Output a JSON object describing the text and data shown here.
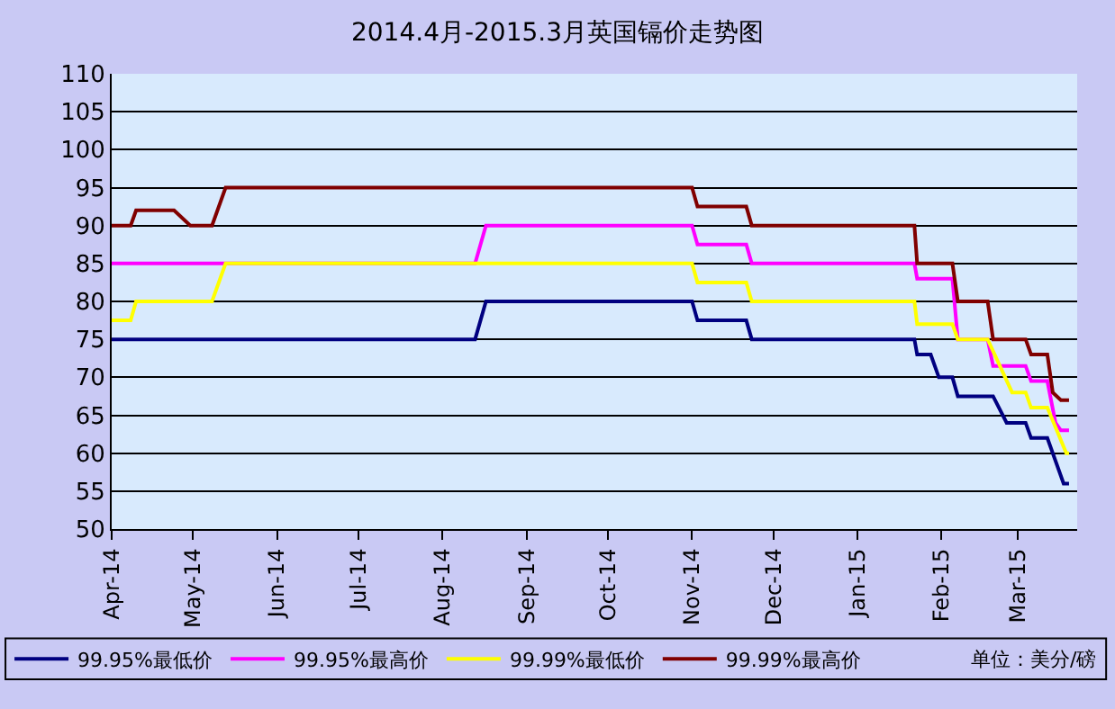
{
  "chart_data": {
    "type": "line",
    "title": "2014.4月-2015.3月英国镉价走势图",
    "xlim": [
      "2014-04-01",
      "2015-03-23"
    ],
    "xticks": [
      {
        "value": "2014-04-01",
        "label": "Apr-14"
      },
      {
        "value": "2014-05-01",
        "label": "May-14"
      },
      {
        "value": "2014-06-01",
        "label": "Jun-14"
      },
      {
        "value": "2014-07-01",
        "label": "Jul-14"
      },
      {
        "value": "2014-08-01",
        "label": "Aug-14"
      },
      {
        "value": "2014-09-01",
        "label": "Sep-14"
      },
      {
        "value": "2014-10-01",
        "label": "Oct-14"
      },
      {
        "value": "2014-11-01",
        "label": "Nov-14"
      },
      {
        "value": "2014-12-01",
        "label": "Dec-14"
      },
      {
        "value": "2015-01-01",
        "label": "Jan-15"
      },
      {
        "value": "2015-02-01",
        "label": "Feb-15"
      },
      {
        "value": "2015-03-01",
        "label": "Mar-15"
      }
    ],
    "ylim": [
      50,
      110
    ],
    "yticks": [
      50,
      55,
      60,
      65,
      70,
      75,
      80,
      85,
      90,
      95,
      100,
      105,
      110
    ],
    "grid": "y",
    "legend": "bottom",
    "marker": "none",
    "line_style": "solid",
    "annotations": [
      "单位：美分/磅"
    ],
    "series": [
      {
        "name": "99.95%最低价",
        "color": "#000080",
        "x": [
          "2014-04-01",
          "2014-08-13",
          "2014-08-17",
          "2014-11-01",
          "2014-11-03",
          "2014-11-21",
          "2014-11-23",
          "2015-01-22",
          "2015-01-23",
          "2015-01-28",
          "2015-01-31",
          "2015-02-05",
          "2015-02-07",
          "2015-02-20",
          "2015-02-25",
          "2015-03-04",
          "2015-03-06",
          "2015-03-12",
          "2015-03-18",
          "2015-03-20"
        ],
        "values": [
          75,
          75,
          80,
          80,
          77.5,
          77.5,
          75,
          75,
          73,
          73,
          70,
          70,
          67.5,
          67.5,
          64,
          64,
          62,
          62,
          56,
          56
        ]
      },
      {
        "name": "99.95%最高价",
        "color": "#ff00ff",
        "x": [
          "2014-04-01",
          "2014-08-13",
          "2014-08-17",
          "2014-11-01",
          "2014-11-03",
          "2014-11-21",
          "2014-11-23",
          "2015-01-22",
          "2015-01-23",
          "2015-02-05",
          "2015-02-07",
          "2015-02-18",
          "2015-02-20",
          "2015-03-04",
          "2015-03-06",
          "2015-03-12",
          "2015-03-15",
          "2015-03-17",
          "2015-03-20"
        ],
        "values": [
          85,
          85,
          90,
          90,
          87.5,
          87.5,
          85,
          85,
          83,
          83,
          75,
          75,
          71.5,
          71.5,
          69.5,
          69.5,
          64,
          63,
          63
        ]
      },
      {
        "name": "99.99%最低价",
        "color": "#ffff00",
        "x": [
          "2014-04-01",
          "2014-04-08",
          "2014-04-10",
          "2014-05-08",
          "2014-05-13",
          "2014-11-01",
          "2014-11-03",
          "2014-11-21",
          "2014-11-23",
          "2015-01-22",
          "2015-01-23",
          "2015-02-05",
          "2015-02-07",
          "2015-02-18",
          "2015-02-27",
          "2015-03-04",
          "2015-03-06",
          "2015-03-12",
          "2015-03-19",
          "2015-03-20"
        ],
        "values": [
          77.5,
          77.5,
          80,
          80,
          85,
          85,
          82.5,
          82.5,
          80,
          80,
          77,
          77,
          75,
          75,
          68,
          68,
          66,
          66,
          60,
          60
        ]
      },
      {
        "name": "99.99%最高价",
        "color": "#800000",
        "x": [
          "2014-04-01",
          "2014-04-08",
          "2014-04-10",
          "2014-04-24",
          "2014-04-30",
          "2014-05-08",
          "2014-05-13",
          "2014-11-01",
          "2014-11-03",
          "2014-11-21",
          "2014-11-23",
          "2015-01-22",
          "2015-01-23",
          "2015-02-05",
          "2015-02-07",
          "2015-02-18",
          "2015-02-20",
          "2015-03-04",
          "2015-03-06",
          "2015-03-12",
          "2015-03-14",
          "2015-03-17",
          "2015-03-20"
        ],
        "values": [
          90,
          90,
          92,
          92,
          90,
          90,
          95,
          95,
          92.5,
          92.5,
          90,
          90,
          85,
          85,
          80,
          80,
          75,
          75,
          73,
          73,
          68,
          67,
          67
        ]
      }
    ]
  }
}
